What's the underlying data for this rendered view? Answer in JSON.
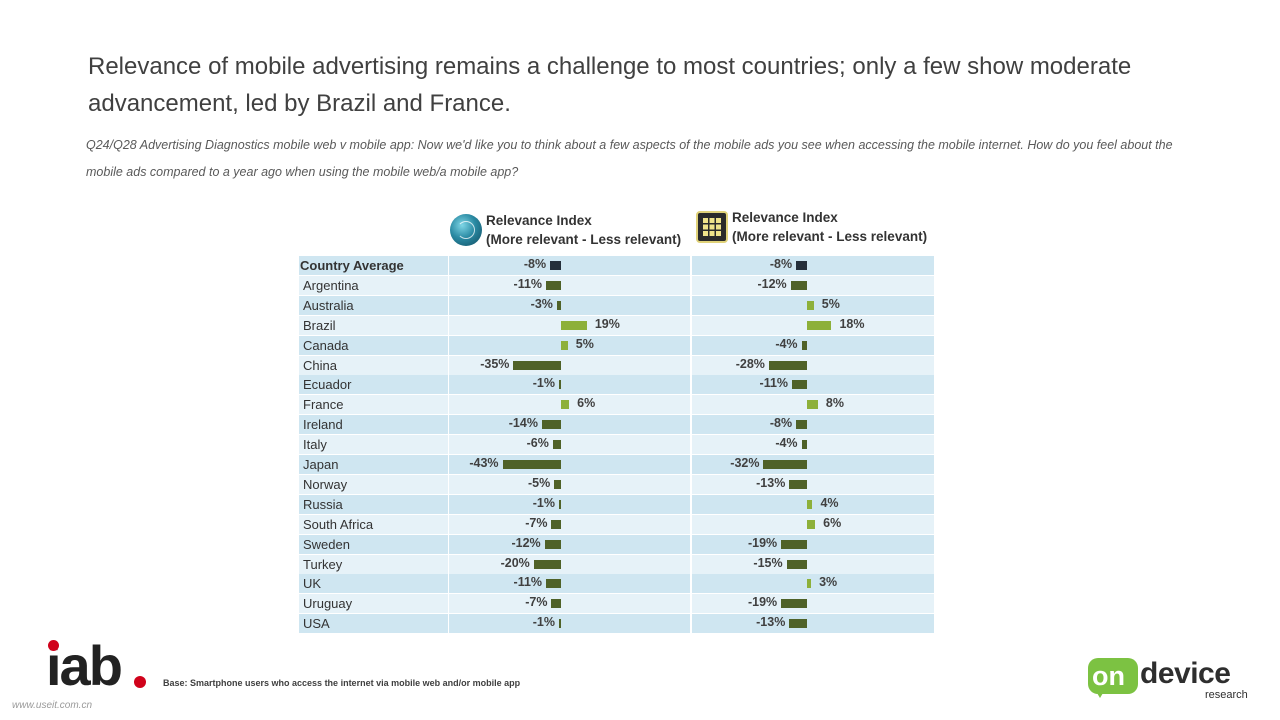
{
  "title": "Relevance of mobile advertising remains a challenge to most countries; only a few show moderate advancement, led by Brazil and France.",
  "subtitle": "Q24/Q28 Advertising Diagnostics mobile web v mobile app: Now we'd like you to think about a few aspects of the mobile ads you see when accessing the mobile internet. How do you feel about the mobile ads compared to a year ago when using the mobile web/a mobile app?",
  "base_note": "Base: Smartphone users who access the internet via mobile web and/or mobile app",
  "watermark": "www.useit.com.cn",
  "logos": {
    "left": "iab",
    "right_on": "on",
    "right_device": "device",
    "right_research": "research"
  },
  "icons": {
    "web": "globe-icon",
    "app": "app-grid-icon"
  },
  "colors": {
    "average": "#252f3a",
    "negative": "#4f6228",
    "positive": "#8db03a",
    "row_a": "#cfe6f1",
    "row_b": "#e6f2f8"
  },
  "chart_data": {
    "type": "bar",
    "orientation": "horizontal",
    "columns": [
      {
        "key": "web",
        "header_line1": "Relevance Index",
        "header_line2": "(More relevant - Less relevant)"
      },
      {
        "key": "app",
        "header_line1": "Relevance Index",
        "header_line2": "(More relevant - Less relevant)"
      }
    ],
    "categories": [
      "Country Average",
      "Argentina",
      "Australia",
      "Brazil",
      "Canada",
      "China",
      "Ecuador",
      "France",
      "Ireland",
      "Italy",
      "Japan",
      "Norway",
      "Russia",
      "South Africa",
      "Sweden",
      "Turkey",
      "UK",
      "Uruguay",
      "USA"
    ],
    "series": [
      {
        "values": [
          -8,
          -11,
          -3,
          19,
          5,
          -35,
          -1,
          6,
          -14,
          -6,
          -43,
          -5,
          -1,
          -7,
          -12,
          -20,
          -11,
          -7,
          -1
        ]
      },
      {
        "values": [
          -8,
          -12,
          5,
          18,
          -4,
          -28,
          -11,
          8,
          -8,
          -4,
          -32,
          -13,
          4,
          6,
          -19,
          -15,
          3,
          -19,
          -13
        ]
      }
    ],
    "unit": "%"
  }
}
